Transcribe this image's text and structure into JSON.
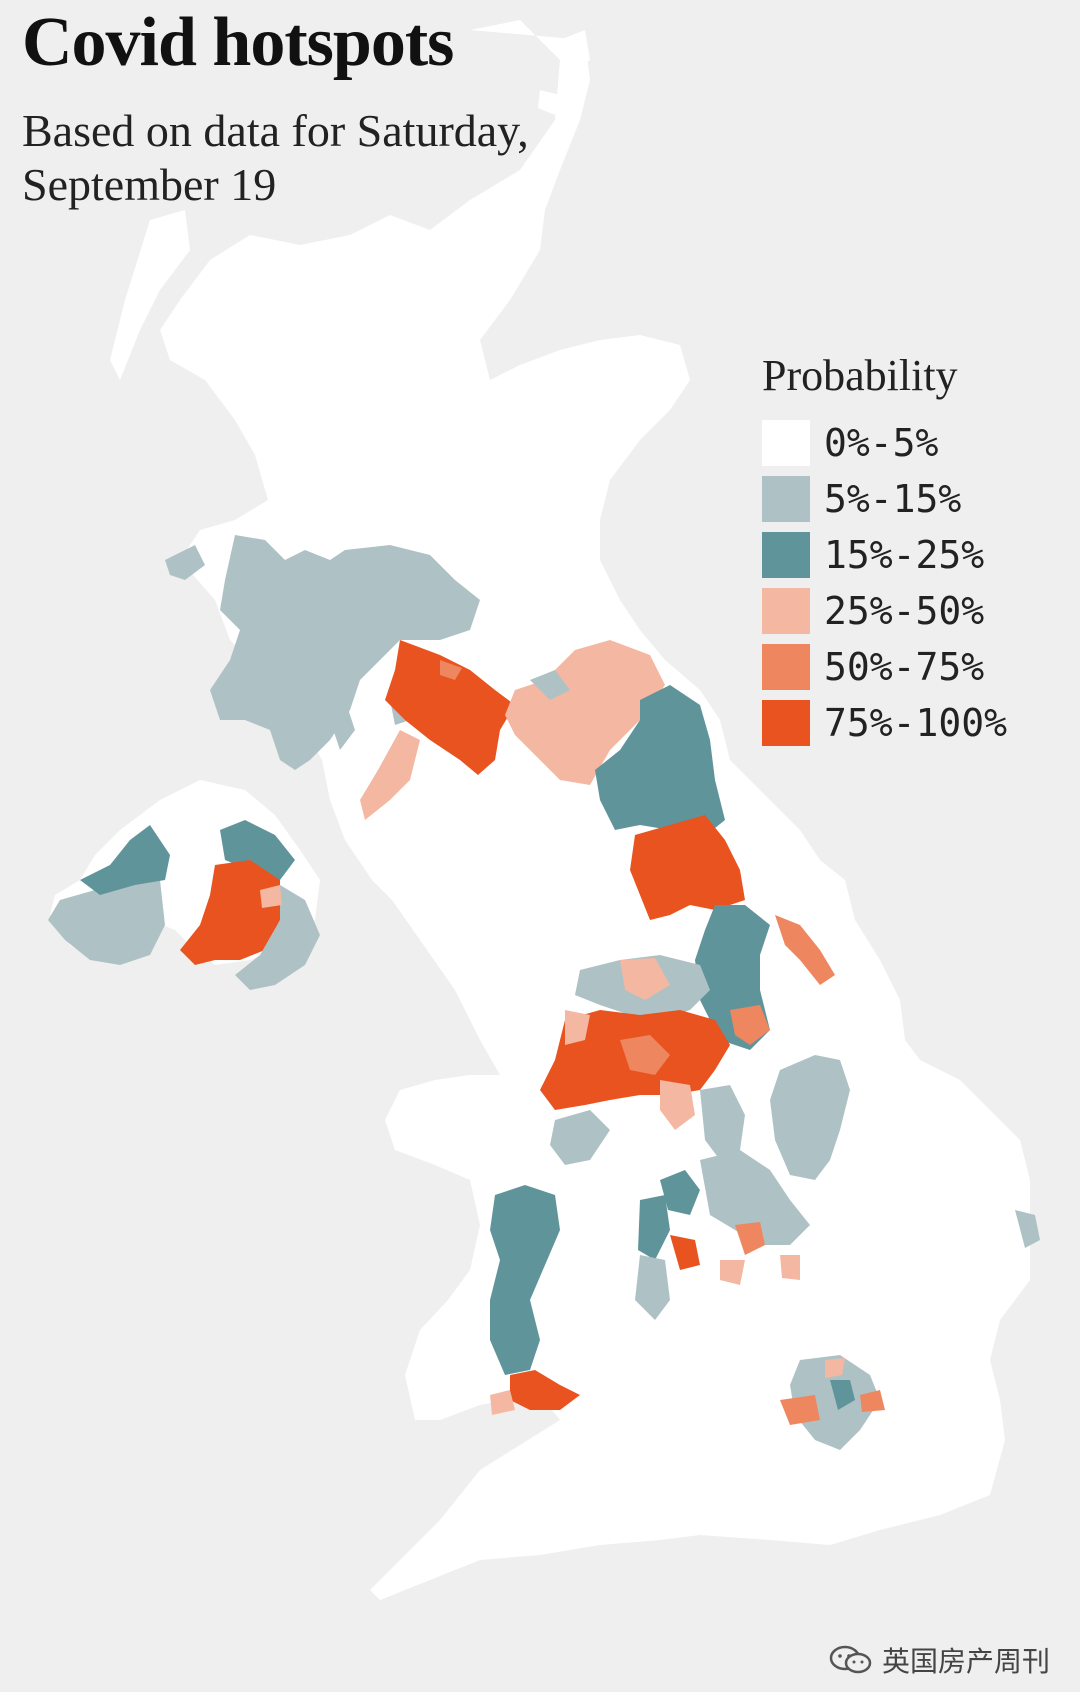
{
  "title": "Covid hotspots",
  "subtitle": "Based on data for Saturday, September 19",
  "legend": {
    "title": "Probability",
    "items": [
      {
        "label": "0%-5%",
        "color": "#ffffff"
      },
      {
        "label": "5%-15%",
        "color": "#aec2c5"
      },
      {
        "label": "15%-25%",
        "color": "#5f959a"
      },
      {
        "label": "25%-50%",
        "color": "#f4b7a2"
      },
      {
        "label": "50%-75%",
        "color": "#ee865f"
      },
      {
        "label": "75%-100%",
        "color": "#e8531f"
      }
    ]
  },
  "watermark": {
    "icon": "wechat-icon",
    "text": "英国房产周刊"
  }
}
